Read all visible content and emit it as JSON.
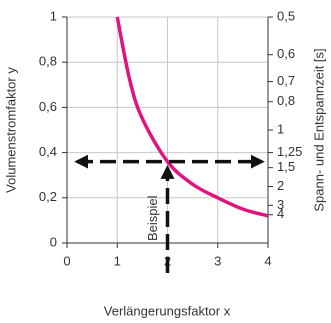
{
  "chart_data": {
    "type": "line",
    "xlabel": "Verlängerungsfaktor x",
    "ylabel": "Volumenstromfaktor y",
    "y2label": "Spann- und Entspannzeit [s]",
    "x": [
      1,
      1.25,
      1.5,
      2,
      2.5,
      3,
      3.5,
      4
    ],
    "values": [
      1,
      0.72,
      0.55,
      0.36,
      0.26,
      0.2,
      0.15,
      0.12
    ],
    "color": "#e0147f",
    "xlim": [
      0,
      4
    ],
    "xticks": [
      0,
      1,
      2,
      3,
      4
    ],
    "ylim": [
      0,
      1
    ],
    "yticks": [
      0,
      {
        "value": 0.2,
        "label": "0,2"
      },
      {
        "value": 0.4,
        "label": "0,4"
      },
      {
        "value": 0.6,
        "label": "0,6"
      },
      {
        "value": 0.8,
        "label": "0,8"
      },
      1
    ],
    "y2_scale": "reciprocal",
    "y2lim": [
      0.5,
      4
    ],
    "y2ticks": [
      {
        "value": 0.5,
        "label": "0,5"
      },
      {
        "value": 0.6,
        "label": "0,6"
      },
      {
        "value": 0.7,
        "label": "0,7"
      },
      {
        "value": 0.8,
        "label": "0,8"
      },
      1,
      {
        "value": 1.25,
        "label": "1,25"
      },
      {
        "value": 1.5,
        "label": "1,5"
      },
      2,
      3,
      4
    ],
    "grid": true,
    "annotation": {
      "text": "Beispiel",
      "x": 2,
      "y": 0.36
    }
  }
}
